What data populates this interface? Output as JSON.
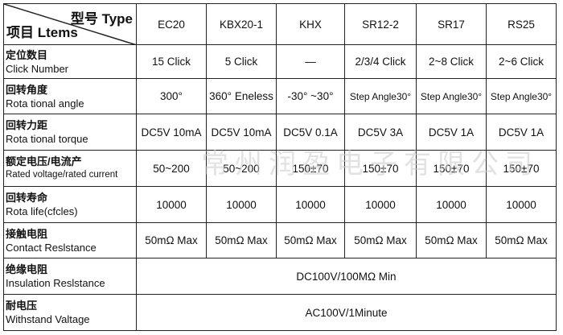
{
  "header": {
    "type_label": "型号 Type",
    "items_label": "项目 Ltems",
    "models": [
      "EC20",
      "KBX20-1",
      "KHX",
      "SR12-2",
      "SR17",
      "RS25"
    ]
  },
  "rows": [
    {
      "zh": "定位数目",
      "en": "Click Number",
      "values": [
        "15 Click",
        "5 Click",
        "—",
        "2/3/4 Click",
        "2~8 Click",
        "2~6 Click"
      ]
    },
    {
      "zh": "回转角度",
      "en": "Rota tional angle",
      "values": [
        "300°",
        "360°  Eneless",
        "-30°  ~30°",
        "Step Angle30°",
        "Step Angle30°",
        "Step Angle30°"
      ]
    },
    {
      "zh": "回转力距",
      "en": "Rota tional torque",
      "values": [
        "DC5V 10mA",
        "DC5V 10mA",
        "DC5V 0.1A",
        "DC5V 3A",
        "DC5V 1A",
        "DC5V 1A"
      ]
    },
    {
      "zh": "额定电压/电流产",
      "en": "Rated voltage/rated current",
      "values": [
        "50~200",
        "50~200",
        "150±70",
        "150±70",
        "150±70",
        "150±70"
      ]
    },
    {
      "zh": "回转寿命",
      "en": "Rota life(cfcles)",
      "values": [
        "10000",
        "10000",
        "10000",
        "10000",
        "10000",
        "10000"
      ]
    },
    {
      "zh": "接触电阻",
      "en": "Contact Reslstance",
      "values": [
        "50mΩ Max",
        "50mΩ Max",
        "50mΩ Max",
        "50mΩ Max",
        "50mΩ Max",
        "50mΩ Max"
      ]
    },
    {
      "zh": "绝缘电阻",
      "en": "Insulation Reslstance",
      "merged": "DC100V/100MΩ Min"
    },
    {
      "zh": "耐电压",
      "en": "Withstand Valtage",
      "merged": "AC100V/1Minute"
    }
  ],
  "watermark": "常州润盈电子有限公司"
}
